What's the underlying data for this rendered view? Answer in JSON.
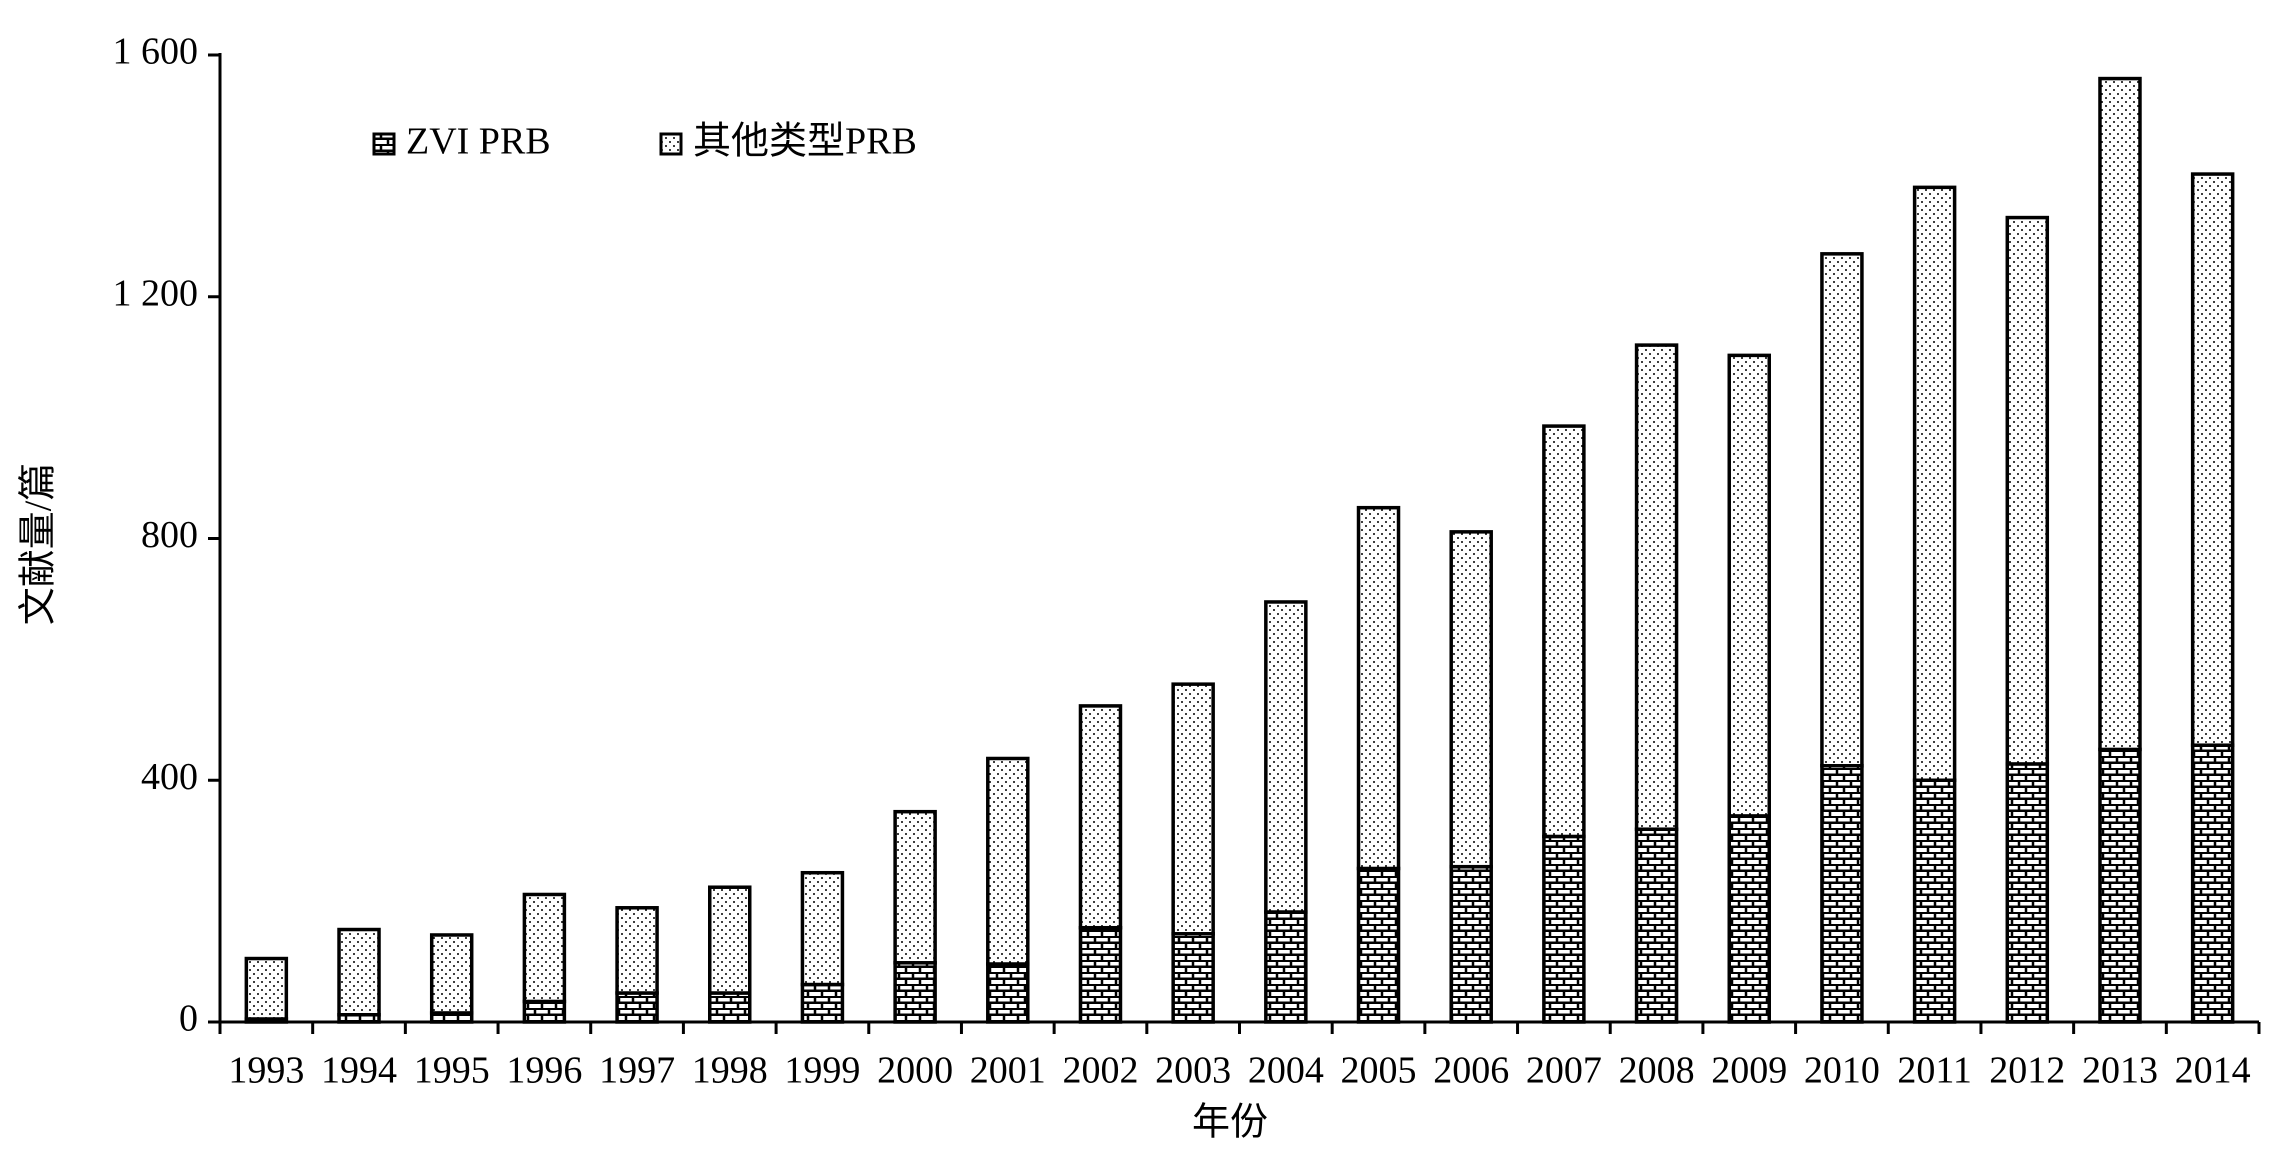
{
  "chart_data": {
    "type": "stacked_bar",
    "x_label": "年份",
    "y_label": "文献量/篇",
    "categories": [
      "1993",
      "1994",
      "1995",
      "1996",
      "1997",
      "1998",
      "1999",
      "2000",
      "2001",
      "2002",
      "2003",
      "2004",
      "2005",
      "2006",
      "2007",
      "2008",
      "2009",
      "2010",
      "2011",
      "2012",
      "2013",
      "2014"
    ],
    "series": [
      {
        "name": "ZVI PRB",
        "color": "#000000",
        "pattern": "brick",
        "values": [
          5,
          12,
          15,
          34,
          48,
          48,
          62,
          98,
          96,
          156,
          146,
          182,
          254,
          257,
          307,
          319,
          341,
          424,
          400,
          427,
          451,
          458
        ]
      },
      {
        "name": "其他类型PRB",
        "color": "#000000",
        "pattern": "dots",
        "values": [
          100,
          141,
          129,
          177,
          141,
          175,
          185,
          250,
          340,
          367,
          413,
          513,
          597,
          554,
          679,
          801,
          762,
          847,
          981,
          904,
          1110,
          945
        ]
      }
    ],
    "ylim": [
      0,
      1600
    ],
    "yticks": [
      0,
      400,
      800,
      {
        "value": 1200,
        "label": "1 200"
      },
      {
        "value": 1600,
        "label": "1 600"
      }
    ],
    "legend": "top-left",
    "grid": false
  }
}
